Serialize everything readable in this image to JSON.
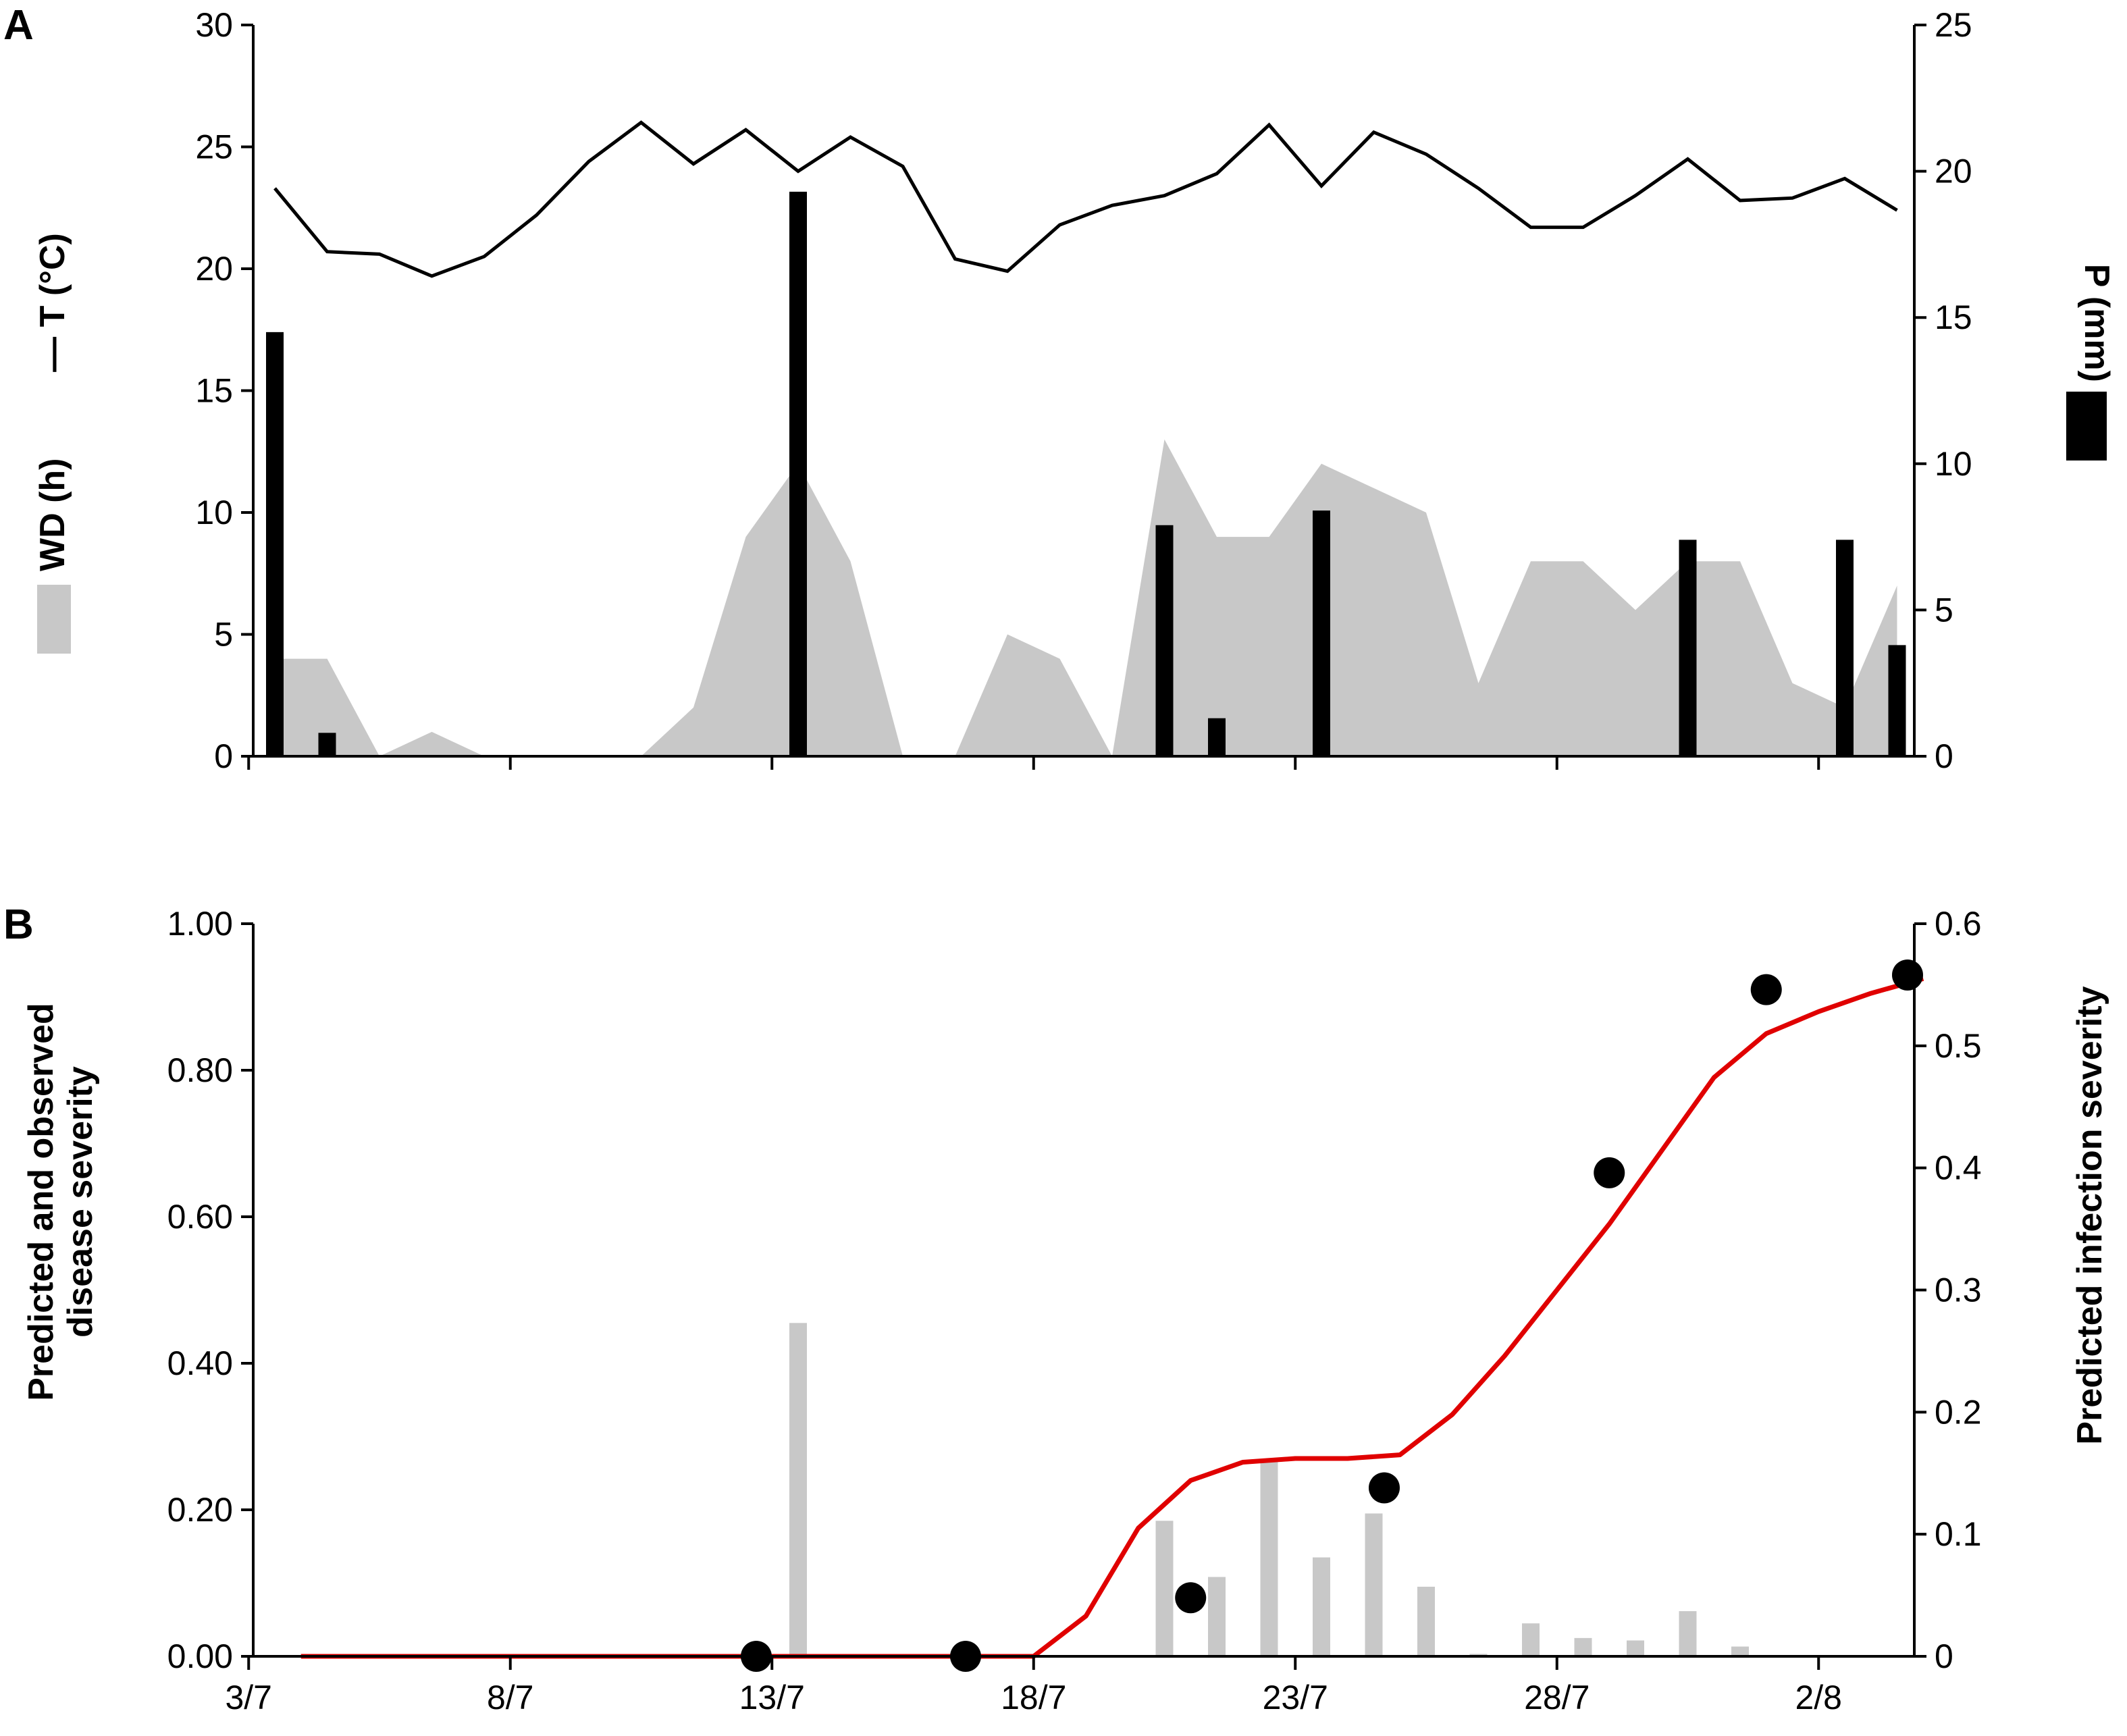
{
  "panels": {
    "a": {
      "letter": "A"
    },
    "b": {
      "letter": "B"
    }
  },
  "legend": {
    "wd": {
      "label": "WD (h)",
      "color": "#c8c8c8"
    },
    "t": {
      "label": "— T (°C)",
      "color": "#000000"
    },
    "p": {
      "label": "P (mm)",
      "color": "#000000"
    }
  },
  "chart_data": [
    {
      "type": "line",
      "panel": "A",
      "x_dates": [
        "3/7",
        "4/7",
        "5/7",
        "6/7",
        "7/7",
        "8/7",
        "9/7",
        "10/7",
        "11/7",
        "12/7",
        "13/7",
        "14/7",
        "15/7",
        "16/7",
        "17/7",
        "18/7",
        "19/7",
        "20/7",
        "21/7",
        "22/7",
        "23/7",
        "24/7",
        "25/7",
        "26/7",
        "27/7",
        "28/7",
        "29/7",
        "30/7",
        "31/7",
        "1/8",
        "2/8",
        "3/8"
      ],
      "xticks": [
        "3/7",
        "8/7",
        "13/7",
        "18/7",
        "23/7",
        "28/7",
        "2/8"
      ],
      "ylim_left": [
        0,
        30
      ],
      "yticks_left": [
        0,
        5,
        10,
        15,
        20,
        25,
        30
      ],
      "ylim_right": [
        0,
        25
      ],
      "yticks_right": [
        0,
        5,
        10,
        15,
        20,
        25
      ],
      "series": [
        {
          "name": "T (°C)",
          "kind": "line",
          "axis": "left",
          "color": "#000000",
          "values": [
            23.3,
            20.7,
            20.6,
            19.7,
            20.5,
            22.2,
            24.4,
            26.0,
            24.3,
            25.7,
            24.0,
            25.4,
            24.2,
            20.4,
            19.9,
            21.8,
            22.6,
            23.0,
            23.9,
            25.9,
            23.4,
            25.6,
            24.7,
            23.3,
            21.7,
            21.7,
            23.0,
            24.5,
            22.8,
            22.9,
            23.7,
            22.4
          ]
        },
        {
          "name": "WD (h)",
          "kind": "area",
          "axis": "left",
          "color": "#c8c8c8",
          "values": [
            4,
            4,
            0,
            1,
            0,
            0,
            0,
            0,
            2,
            9,
            12,
            8,
            0,
            0,
            5,
            4,
            0,
            13,
            9,
            9,
            12,
            11,
            10,
            3,
            8,
            8,
            6,
            8,
            8,
            3,
            2,
            7
          ]
        },
        {
          "name": "P (mm)",
          "kind": "bar",
          "axis": "right",
          "color": "#000000",
          "values": [
            14.5,
            0.8,
            0,
            0,
            0,
            0,
            0,
            0,
            0,
            0,
            19.3,
            0,
            0,
            0,
            0,
            0,
            0,
            7.9,
            1.3,
            0,
            8.4,
            0,
            0,
            0,
            0,
            0,
            0,
            7.4,
            0,
            0,
            7.4,
            3.8
          ]
        }
      ]
    },
    {
      "type": "line",
      "panel": "B",
      "x_dates": [
        "3/7",
        "4/7",
        "5/7",
        "6/7",
        "7/7",
        "8/7",
        "9/7",
        "10/7",
        "11/7",
        "12/7",
        "13/7",
        "14/7",
        "15/7",
        "16/7",
        "17/7",
        "18/7",
        "19/7",
        "20/7",
        "21/7",
        "22/7",
        "23/7",
        "24/7",
        "25/7",
        "26/7",
        "27/7",
        "28/7",
        "29/7",
        "30/7",
        "31/7",
        "1/8",
        "2/8",
        "3/8"
      ],
      "xticks": [
        "3/7",
        "8/7",
        "13/7",
        "18/7",
        "23/7",
        "28/7",
        "2/8"
      ],
      "ylabel_left": "Predicted and observed disease severity",
      "ylabel_right": "Predicted infection severity",
      "ylim_left": [
        0,
        1.0
      ],
      "yticks_left": [
        "0.00",
        "0.20",
        "0.40",
        "0.60",
        "0.80",
        "1.00"
      ],
      "ylim_right": [
        0,
        0.6
      ],
      "yticks_right": [
        "0",
        "0.1",
        "0.2",
        "0.3",
        "0.4",
        "0.5",
        "0.6"
      ],
      "series": [
        {
          "kind": "bar",
          "axis": "right",
          "color": "#c8c8c8",
          "values": [
            0,
            0,
            0,
            0,
            0,
            0,
            0,
            0,
            0,
            0,
            0.273,
            0,
            0,
            0,
            0,
            0,
            0,
            0.111,
            0.065,
            0.16,
            0.081,
            0.117,
            0.057,
            0.002,
            0.027,
            0.015,
            0.013,
            0.037,
            0.008,
            0,
            0,
            0
          ]
        },
        {
          "kind": "line",
          "axis": "left",
          "color": "#e00000",
          "x_offset": 0.5,
          "values": [
            0,
            0,
            0,
            0,
            0,
            0,
            0,
            0,
            0,
            0,
            0,
            0,
            0,
            0,
            0,
            0.055,
            0.175,
            0.24,
            0.265,
            0.27,
            0.27,
            0.275,
            0.33,
            0.41,
            0.5,
            0.59,
            0.69,
            0.79,
            0.85,
            0.88,
            0.905,
            0.925
          ]
        },
        {
          "kind": "scatter",
          "axis": "left",
          "color": "#000000",
          "points": [
            {
              "day": 9.2,
              "value": 0.0
            },
            {
              "day": 13.2,
              "value": 0.0
            },
            {
              "day": 17.5,
              "value": 0.08
            },
            {
              "day": 21.2,
              "value": 0.23
            },
            {
              "day": 25.5,
              "value": 0.66
            },
            {
              "day": 28.5,
              "value": 0.91
            },
            {
              "day": 31.2,
              "value": 0.93
            }
          ]
        }
      ]
    }
  ]
}
